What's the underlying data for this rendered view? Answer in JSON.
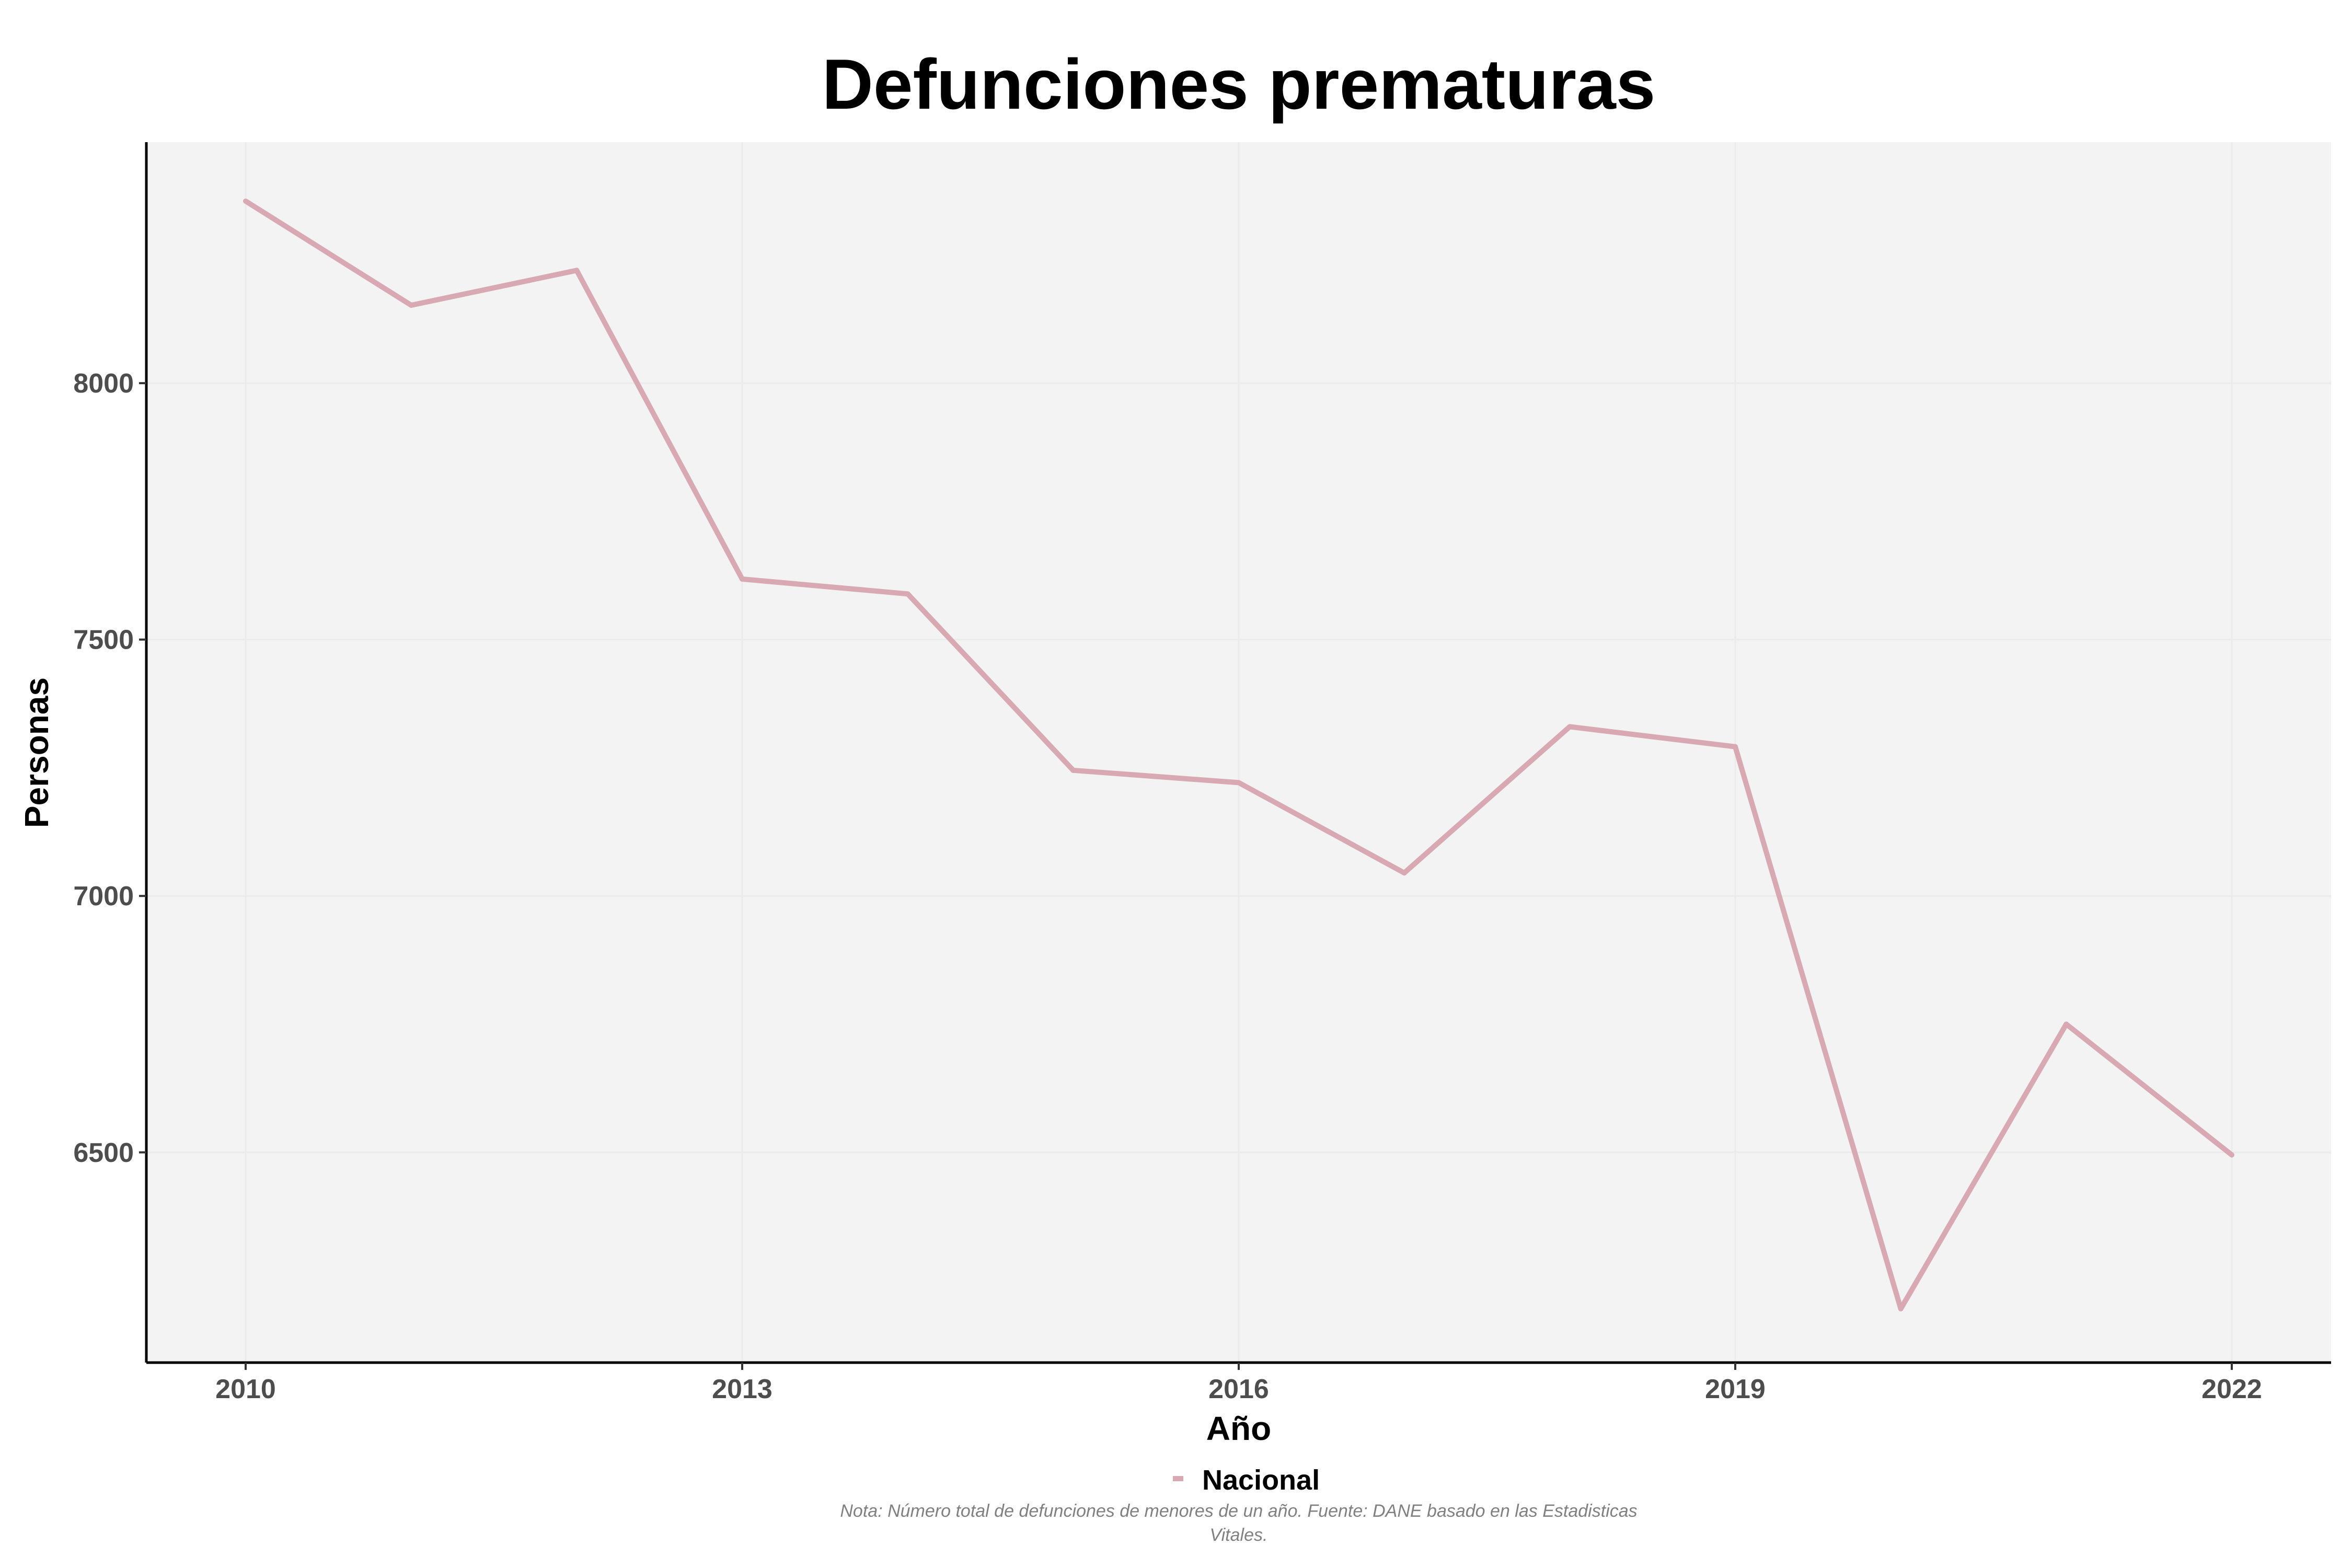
{
  "chart_data": {
    "type": "line",
    "title": "Defunciones prematuras",
    "xlabel": "Año",
    "ylabel": "Personas",
    "x": [
      2010,
      2011,
      2012,
      2013,
      2014,
      2015,
      2016,
      2017,
      2018,
      2019,
      2020,
      2021,
      2022
    ],
    "x_ticks": [
      2010,
      2013,
      2016,
      2019,
      2022
    ],
    "y_ticks": [
      6500,
      7000,
      7500,
      8000
    ],
    "xlim": [
      2009.4,
      2022.6
    ],
    "ylim": [
      6090,
      8470
    ],
    "grid": true,
    "legend_position": "bottom",
    "series": [
      {
        "name": "Nacional",
        "color": "#d8a8b3",
        "values": [
          8355,
          8152,
          8220,
          7618,
          7589,
          7245,
          7221,
          7045,
          7330,
          7291,
          6195,
          6750,
          6495
        ]
      }
    ],
    "note_lines": [
      "Nota: Número total de defunciones de menores de un año. Fuente: DANE basado en las Estadisticas",
      "Vitales."
    ],
    "colors": {
      "panel_background": "#f3f3f3",
      "grid": "#ebebeb",
      "axis_line": "#000000"
    }
  }
}
